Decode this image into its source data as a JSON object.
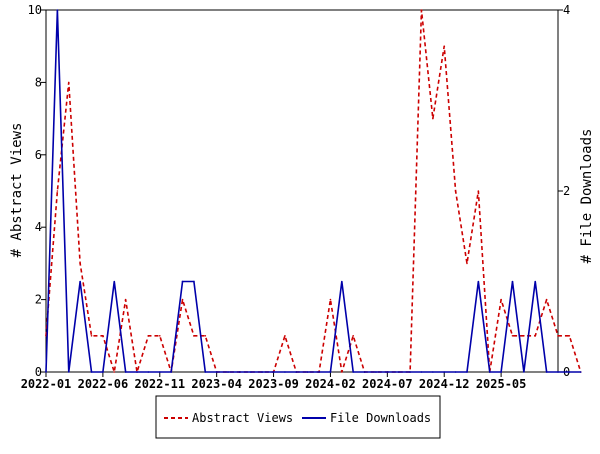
{
  "chart_data": {
    "type": "line",
    "title": "",
    "x_ticks": [
      "2022-01",
      "2022-06",
      "2022-11",
      "2023-04",
      "2023-09",
      "2024-02",
      "2024-07",
      "2024-12",
      "2025-05"
    ],
    "x_range": [
      "2022-01",
      "2025-10"
    ],
    "y_left": {
      "label": "# Abstract Views",
      "ticks": [
        0,
        2,
        4,
        6,
        8,
        10
      ],
      "range": [
        0,
        10
      ]
    },
    "y_right": {
      "label": "# File Downloads",
      "ticks": [
        0,
        2,
        4
      ],
      "range": [
        0,
        4
      ]
    },
    "grid": false,
    "legend_position": "bottom-center",
    "series": [
      {
        "name": "Abstract Views",
        "axis": "left",
        "color": "#cc0000",
        "style": "dashed",
        "values": [
          1,
          5,
          8,
          3,
          1,
          1,
          0,
          2,
          0,
          1,
          1,
          0,
          2,
          1,
          1,
          0,
          0,
          0,
          0,
          0,
          0,
          1,
          0,
          0,
          0,
          2,
          0,
          1,
          0,
          0,
          0,
          0,
          0,
          10,
          7,
          9,
          5,
          3,
          5,
          0,
          2,
          1,
          1,
          1,
          2,
          1,
          1,
          0
        ]
      },
      {
        "name": "File Downloads",
        "axis": "right",
        "color": "#0000aa",
        "style": "solid",
        "values": [
          0,
          4,
          0,
          1,
          0,
          0,
          1,
          0,
          0,
          0,
          0,
          0,
          1,
          1,
          0,
          0,
          0,
          0,
          0,
          0,
          0,
          0,
          0,
          0,
          0,
          0,
          1,
          0,
          0,
          0,
          0,
          0,
          0,
          0,
          0,
          0,
          0,
          0,
          1,
          0,
          0,
          1,
          0,
          1,
          0,
          0,
          0,
          0
        ]
      }
    ]
  }
}
